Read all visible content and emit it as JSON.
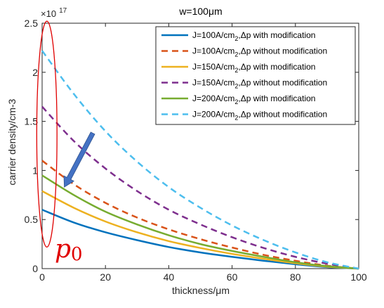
{
  "chart_data": {
    "type": "line",
    "title": "w=100μm",
    "xlabel": "thickness/μm",
    "ylabel": "carrier density/cm-3",
    "y_exponent": "×10",
    "y_exponent_power": "17",
    "xlim": [
      0,
      100
    ],
    "ylim": [
      0,
      2.5
    ],
    "xticks": [
      0,
      20,
      40,
      60,
      80,
      100
    ],
    "yticks": [
      0,
      0.5,
      1,
      1.5,
      2,
      2.5
    ],
    "xtick_labels": [
      "0",
      "20",
      "40",
      "60",
      "80",
      "100"
    ],
    "ytick_labels": [
      "0",
      "0.5",
      "1",
      "1.5",
      "2",
      "2.5"
    ],
    "grid": false,
    "legend_position": "top-right",
    "series": [
      {
        "legend": {
          "pre": "J=100A/cm",
          "sub": "2",
          "post": ",Δp with modification"
        },
        "color": "#0072bd",
        "dashed": false,
        "start": 0.6,
        "points": [
          [
            0,
            0.6
          ],
          [
            10,
            0.47
          ],
          [
            20,
            0.37
          ],
          [
            30,
            0.29
          ],
          [
            40,
            0.22
          ],
          [
            50,
            0.165
          ],
          [
            60,
            0.12
          ],
          [
            70,
            0.08
          ],
          [
            80,
            0.045
          ],
          [
            90,
            0.015
          ],
          [
            100,
            0
          ]
        ]
      },
      {
        "legend": {
          "pre": "J=100A/cm",
          "sub": "2",
          "post": ",Δp without modification"
        },
        "color": "#d95319",
        "dashed": true,
        "start": 1.1,
        "points": [
          [
            0,
            1.1
          ],
          [
            10,
            0.86
          ],
          [
            20,
            0.67
          ],
          [
            30,
            0.52
          ],
          [
            40,
            0.4
          ],
          [
            50,
            0.3
          ],
          [
            60,
            0.215
          ],
          [
            70,
            0.14
          ],
          [
            80,
            0.08
          ],
          [
            90,
            0.03
          ],
          [
            100,
            0
          ]
        ]
      },
      {
        "legend": {
          "pre": "J=150A/cm",
          "sub": "2",
          "post": ",Δp with modification"
        },
        "color": "#edb120",
        "dashed": false,
        "start": 0.79,
        "points": [
          [
            0,
            0.79
          ],
          [
            10,
            0.62
          ],
          [
            20,
            0.48
          ],
          [
            30,
            0.37
          ],
          [
            40,
            0.28
          ],
          [
            50,
            0.21
          ],
          [
            60,
            0.15
          ],
          [
            70,
            0.1
          ],
          [
            80,
            0.055
          ],
          [
            90,
            0.02
          ],
          [
            100,
            0
          ]
        ]
      },
      {
        "legend": {
          "pre": "J=150A/cm",
          "sub": "2",
          "post": ",Δp without modification"
        },
        "color": "#7e2f8e",
        "dashed": true,
        "start": 1.65,
        "points": [
          [
            0,
            1.65
          ],
          [
            10,
            1.3
          ],
          [
            20,
            1.02
          ],
          [
            30,
            0.79
          ],
          [
            40,
            0.6
          ],
          [
            50,
            0.45
          ],
          [
            60,
            0.32
          ],
          [
            70,
            0.21
          ],
          [
            80,
            0.12
          ],
          [
            90,
            0.05
          ],
          [
            100,
            0
          ]
        ]
      },
      {
        "legend": {
          "pre": "J=200A/cm",
          "sub": "2",
          "post": ",Δp with modification"
        },
        "color": "#77ac30",
        "dashed": false,
        "start": 0.95,
        "points": [
          [
            0,
            0.95
          ],
          [
            10,
            0.75
          ],
          [
            20,
            0.58
          ],
          [
            30,
            0.45
          ],
          [
            40,
            0.34
          ],
          [
            50,
            0.25
          ],
          [
            60,
            0.18
          ],
          [
            70,
            0.12
          ],
          [
            80,
            0.065
          ],
          [
            90,
            0.025
          ],
          [
            100,
            0
          ]
        ]
      },
      {
        "legend": {
          "pre": "J=200A/cm",
          "sub": "2",
          "post": ",Δp without modification"
        },
        "color": "#4dbeee",
        "dashed": true,
        "start": 2.22,
        "points": [
          [
            0,
            2.22
          ],
          [
            10,
            1.78
          ],
          [
            20,
            1.4
          ],
          [
            30,
            1.09
          ],
          [
            40,
            0.83
          ],
          [
            50,
            0.62
          ],
          [
            60,
            0.44
          ],
          [
            70,
            0.29
          ],
          [
            80,
            0.165
          ],
          [
            90,
            0.065
          ],
          [
            100,
            0
          ]
        ]
      }
    ],
    "annotations": {
      "label_main": "p",
      "label_sub": "0",
      "label_color": "#e00000",
      "ellipse_color": "#e00000",
      "arrow_color": "#4472c4",
      "arrow_from": [
        16,
        1.38
      ],
      "arrow_to": [
        7,
        0.83
      ],
      "ellipse_center": [
        1.5,
        1.37
      ],
      "ellipse_rx": 3.2,
      "ellipse_ry": 1.15
    }
  }
}
